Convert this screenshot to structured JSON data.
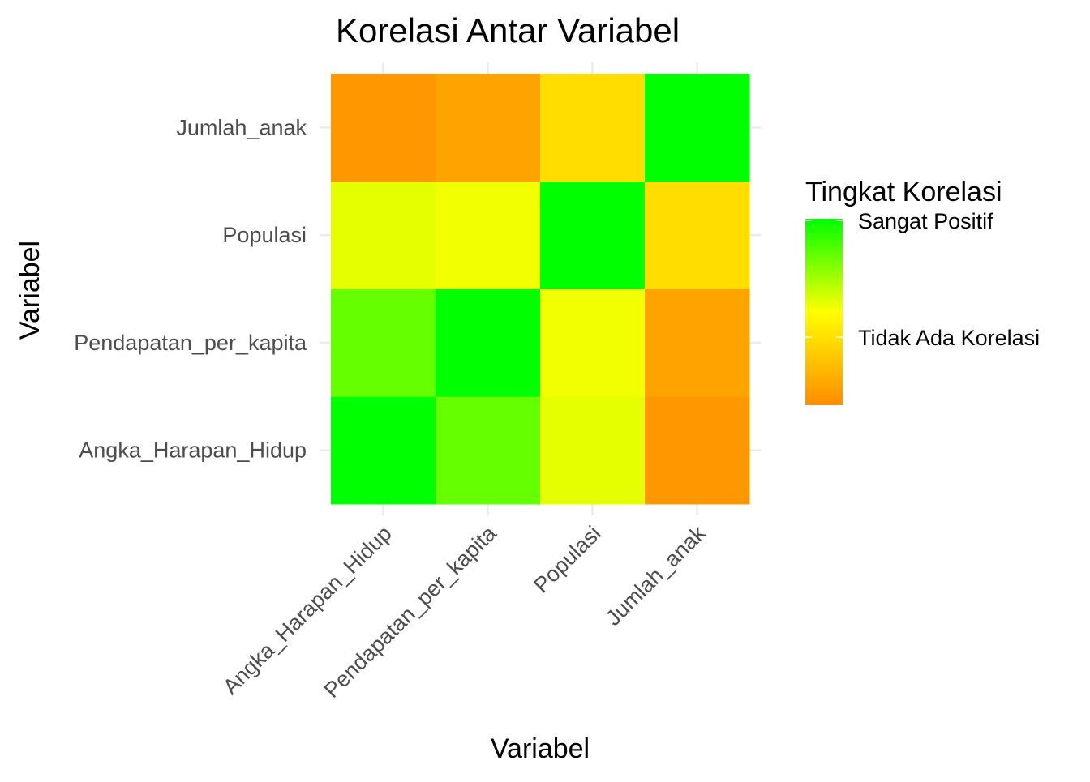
{
  "chart_data": {
    "type": "heatmap",
    "title": "Korelasi Antar Variabel",
    "xlabel": "Variabel",
    "ylabel": "Variabel",
    "x_categories": [
      "Angka_Harapan_Hidup",
      "Pendapatan_per_kapita",
      "Populasi",
      "Jumlah_anak"
    ],
    "y_categories": [
      "Angka_Harapan_Hidup",
      "Pendapatan_per_kapita",
      "Populasi",
      "Jumlah_anak"
    ],
    "values": [
      [
        1.0,
        0.6,
        0.1,
        -0.9
      ],
      [
        0.6,
        1.0,
        0.05,
        -0.8
      ],
      [
        0.1,
        0.05,
        1.0,
        -0.3
      ],
      [
        -0.9,
        -0.8,
        -0.3,
        1.0
      ]
    ],
    "legend": {
      "title": "Tingkat Korelasi",
      "label_high": "Sangat Positif",
      "label_mid": "Tidak Ada Korelasi",
      "placement": "right"
    },
    "colors": {
      "low": "#ff8c00",
      "mid": "#ffff00",
      "high": "#00ff00"
    },
    "scale_range": [
      -1,
      1
    ],
    "grid": true
  }
}
